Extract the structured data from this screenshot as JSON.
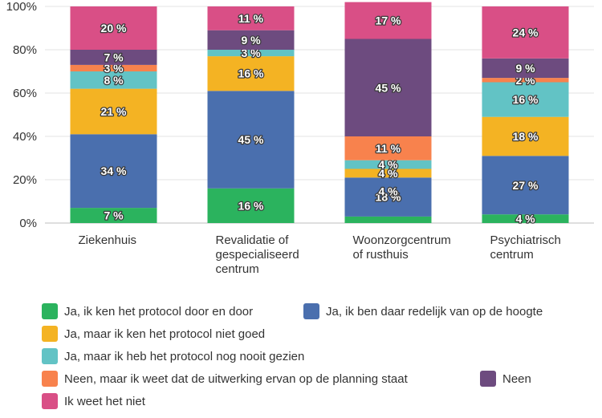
{
  "chart_data": {
    "type": "bar",
    "stacked": true,
    "categories": [
      [
        "Ziekenhuis"
      ],
      [
        "Revalidatie of",
        "gespecialiseerd",
        "centrum"
      ],
      [
        "Woonzorgcentrum",
        "of rusthuis"
      ],
      [
        "Psychiatrisch",
        "centrum"
      ]
    ],
    "ylim": [
      0,
      100
    ],
    "yticks": [
      "0%",
      "20%",
      "40%",
      "60%",
      "80%",
      "100%"
    ],
    "grid": true,
    "legend_position": "bottom",
    "series": [
      {
        "name": "Ja, ik ken het protocol door en door",
        "color": "#2bb35e",
        "values": [
          7,
          16,
          3,
          4
        ],
        "labels": [
          "7 %",
          "16 %",
          "",
          "4 %"
        ]
      },
      {
        "name": "Ja, ik ben daar redelijk van op de hoogte",
        "color": "#4a6fae",
        "values": [
          34,
          45,
          18,
          27
        ],
        "labels": [
          "34 %",
          "45 %",
          "18 %",
          "27 %"
        ]
      },
      {
        "name": "Ja, maar ik ken het protocol niet goed",
        "color": "#f4b323",
        "values": [
          21,
          16,
          4,
          18
        ],
        "labels": [
          "21 %",
          "16 %",
          "4 %",
          "18 %"
        ]
      },
      {
        "name": "Ja, maar ik heb het protocol nog nooit gezien",
        "color": "#62c3c5",
        "values": [
          8,
          3,
          4,
          16
        ],
        "labels": [
          "8 %",
          "3 %",
          "4 %",
          "16 %"
        ]
      },
      {
        "name": "Neen, maar ik weet dat de uitwerking ervan op de planning staat",
        "color": "#f8824d",
        "values": [
          3,
          0,
          11,
          2
        ],
        "labels": [
          "3 %",
          "",
          "11 %",
          "2 %"
        ]
      },
      {
        "name": "Neen",
        "color": "#6d4b7f",
        "values": [
          7,
          9,
          45,
          9
        ],
        "labels": [
          "7 %",
          "9 %",
          "45 %",
          "9 %"
        ]
      },
      {
        "name": "Ik weet het niet",
        "color": "#d94f86",
        "values": [
          20,
          11,
          17,
          24
        ],
        "labels": [
          "20 %",
          "11 %",
          "17 %",
          "24 %"
        ]
      }
    ],
    "extra_labels": [
      {
        "category": 2,
        "series": 1,
        "text": "4 %"
      }
    ]
  }
}
